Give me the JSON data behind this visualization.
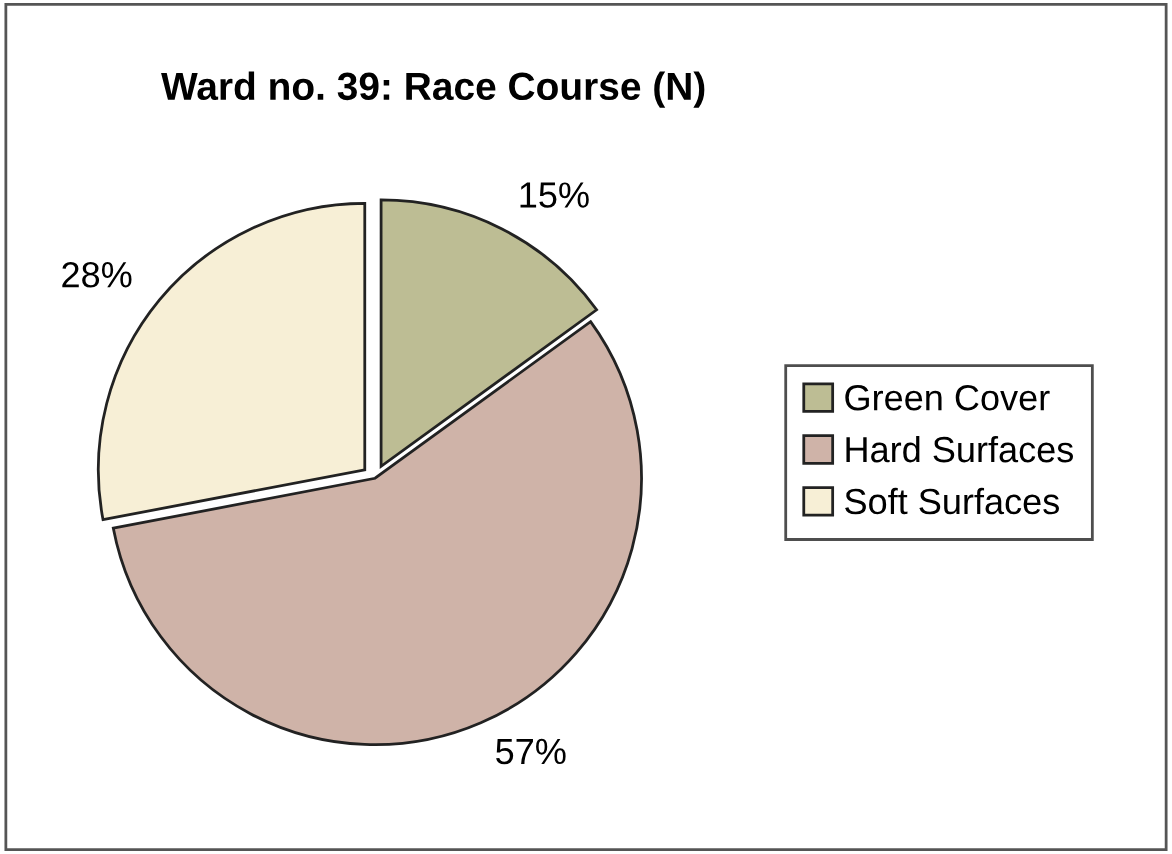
{
  "chart_data": {
    "type": "pie",
    "title": "Ward no. 39: Race Course (N)",
    "categories": [
      "Green Cover",
      "Hard Surfaces",
      "Soft Surfaces"
    ],
    "values": [
      15,
      57,
      28
    ],
    "colors": [
      "#bdbd94",
      "#cfb3a8",
      "#f7efd6"
    ],
    "value_labels": [
      "15%",
      "57%",
      "28%"
    ],
    "legend": "right"
  }
}
